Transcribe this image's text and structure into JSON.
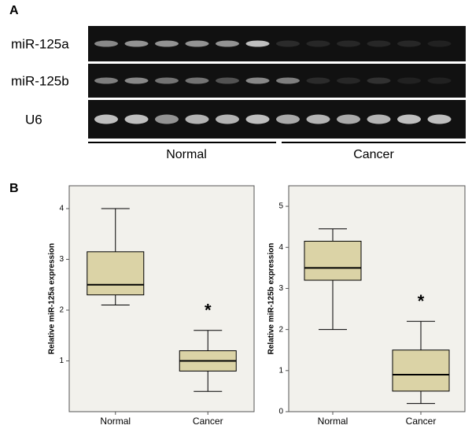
{
  "panel_a": {
    "label": "A",
    "rows": [
      "miR-125a",
      "miR-125b",
      "U6"
    ],
    "groups": [
      "Normal",
      "Cancer"
    ]
  },
  "panel_b": {
    "label": "B"
  },
  "chart_data": [
    {
      "type": "box",
      "ylabel": "Relative miR-125a expression",
      "categories": [
        "Normal",
        "Cancer"
      ],
      "boxes": [
        {
          "min": 2.1,
          "q1": 2.3,
          "median": 2.5,
          "q3": 3.15,
          "max": 4.0
        },
        {
          "min": 0.4,
          "q1": 0.8,
          "median": 1.0,
          "q3": 1.2,
          "max": 1.6
        }
      ],
      "color": "#dbd3a6",
      "ylim": [
        0,
        4.45
      ],
      "yticks": [
        1,
        2,
        3,
        4
      ],
      "annotation": "*"
    },
    {
      "type": "box",
      "ylabel": "Relative miR-125b expression",
      "categories": [
        "Normal",
        "Cancer"
      ],
      "boxes": [
        {
          "min": 2.0,
          "q1": 3.2,
          "median": 3.5,
          "q3": 4.15,
          "max": 4.45
        },
        {
          "min": 0.2,
          "q1": 0.5,
          "median": 0.9,
          "q3": 1.5,
          "max": 2.2
        }
      ],
      "color": "#dbd3a6",
      "ylim": [
        0,
        5.5
      ],
      "yticks": [
        0,
        1,
        2,
        3,
        4,
        5
      ],
      "annotation": "*"
    }
  ]
}
